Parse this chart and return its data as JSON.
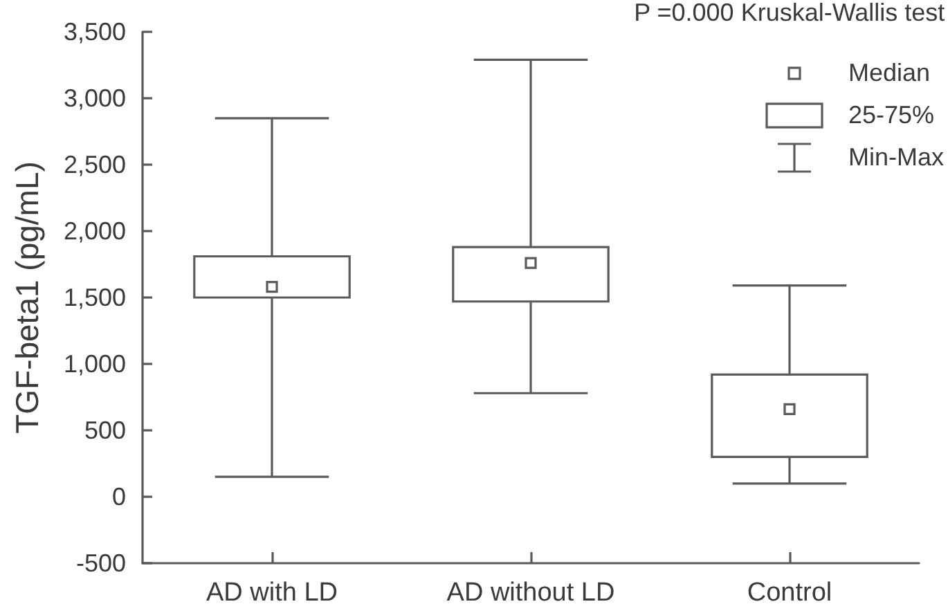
{
  "chart_data": {
    "type": "box",
    "ylabel": "TGF-beta1 (pg/mL)",
    "categories": [
      "AD with LD",
      "AD without LD",
      "Control"
    ],
    "boxes": [
      {
        "low": 150,
        "q1": 1500,
        "median": 1580,
        "q3": 1810,
        "high": 2850
      },
      {
        "low": 780,
        "q1": 1470,
        "median": 1760,
        "q3": 1880,
        "high": 3290
      },
      {
        "low": 100,
        "q1": 300,
        "median": 660,
        "q3": 920,
        "high": 1590
      }
    ],
    "color": "#5a5a5a",
    "ylim": [
      -500,
      3500
    ],
    "yticks": [
      -500,
      0,
      500,
      {
        "value": 1000,
        "label": "1,000"
      },
      {
        "value": 1500,
        "label": "1,500"
      },
      {
        "value": 2000,
        "label": "2,000"
      },
      {
        "value": 2500,
        "label": "2,500"
      },
      {
        "value": 3000,
        "label": "3,000"
      },
      {
        "value": 3500,
        "label": "3,500"
      }
    ],
    "grid": false,
    "annotations": [
      "P =0.000 Kruskal-Wallis test",
      "Median",
      "25-75%",
      "Min-Max"
    ]
  }
}
